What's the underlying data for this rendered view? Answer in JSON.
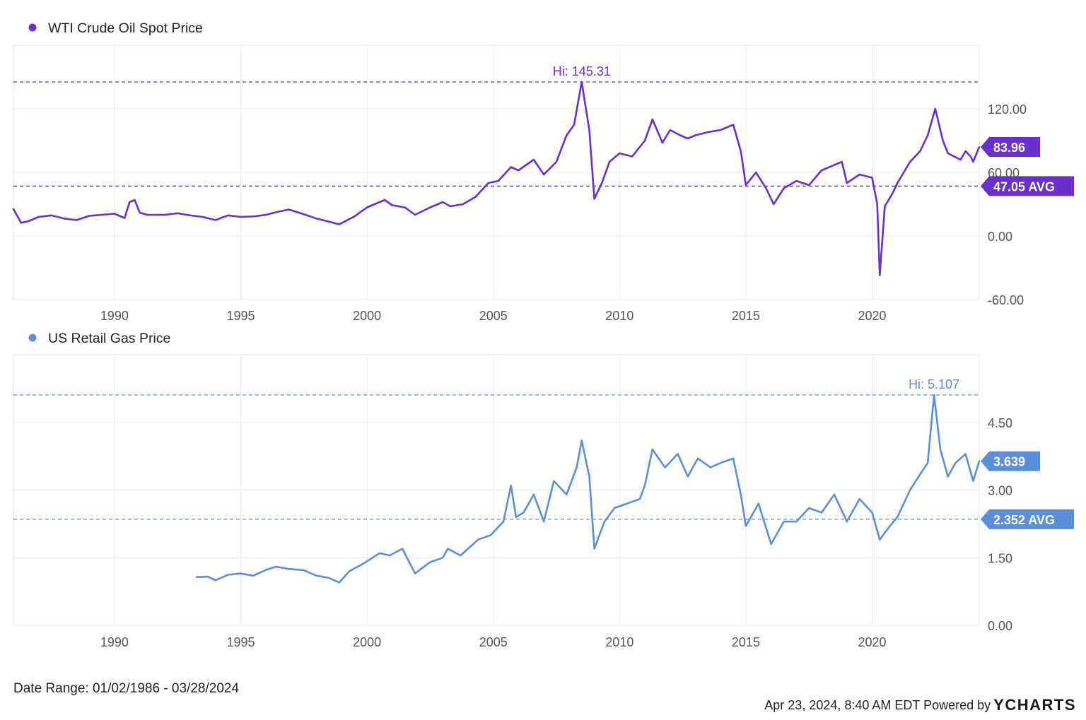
{
  "chart_data": [
    {
      "type": "line",
      "legend": "WTI Crude Oil Spot Price",
      "color": "#6a2fcf",
      "y_ticks": [
        "120.00",
        "60.00",
        "0.00",
        "-60.00"
      ],
      "y_tick_values": [
        120,
        60,
        0,
        -60
      ],
      "ylim": [
        -60,
        180
      ],
      "x_ticks": [
        "1990",
        "1995",
        "2000",
        "2005",
        "2010",
        "2015",
        "2020"
      ],
      "xlim": [
        1986.0,
        2024.24
      ],
      "hi_label": "Hi: 145.31",
      "hi_value": 145.31,
      "last_label": "83.96",
      "last_value": 83.96,
      "avg_label": "47.05 AVG",
      "avg_value": 47.05,
      "grid": true,
      "series": [
        {
          "x": [
            1986.0,
            1986.3,
            1986.6,
            1987.0,
            1987.5,
            1988.0,
            1988.5,
            1989.0,
            1989.5,
            1990.0,
            1990.4,
            1990.6,
            1990.8,
            1991.0,
            1991.3,
            1992.0,
            1992.5,
            1993.0,
            1993.5,
            1994.0,
            1994.5,
            1995.0,
            1995.5,
            1996.0,
            1996.5,
            1996.9,
            1997.5,
            1998.0,
            1998.5,
            1998.9,
            1999.5,
            2000.0,
            2000.7,
            2001.0,
            2001.5,
            2001.9,
            2002.5,
            2003.0,
            2003.3,
            2003.8,
            2004.3,
            2004.8,
            2005.2,
            2005.7,
            2006.0,
            2006.6,
            2007.0,
            2007.5,
            2007.9,
            2008.2,
            2008.5,
            2008.8,
            2009.0,
            2009.3,
            2009.6,
            2010.0,
            2010.5,
            2011.0,
            2011.3,
            2011.7,
            2012.0,
            2012.4,
            2012.7,
            2013.0,
            2013.5,
            2014.0,
            2014.5,
            2014.8,
            2015.0,
            2015.4,
            2015.8,
            2016.1,
            2016.5,
            2017.0,
            2017.5,
            2018.0,
            2018.8,
            2019.0,
            2019.5,
            2020.0,
            2020.2,
            2020.3,
            2020.5,
            2020.8,
            2021.0,
            2021.5,
            2021.9,
            2022.2,
            2022.5,
            2022.8,
            2023.0,
            2023.5,
            2023.7,
            2023.9,
            2024.0,
            2024.24
          ],
          "y": [
            25.5,
            12.5,
            14.0,
            18.0,
            19.5,
            16.5,
            15.0,
            19.0,
            20.0,
            21.0,
            17.0,
            32.0,
            34.0,
            22.0,
            20.0,
            20.0,
            21.5,
            19.5,
            18.0,
            15.0,
            19.5,
            18.0,
            18.5,
            20.0,
            23.0,
            25.0,
            20.5,
            16.5,
            13.5,
            11.0,
            18.5,
            27.0,
            34.0,
            29.0,
            27.0,
            20.0,
            27.0,
            32.0,
            28.0,
            30.0,
            37.0,
            50.0,
            52.0,
            65.0,
            62.0,
            72.0,
            58.0,
            70.0,
            95.0,
            105.0,
            145.31,
            100.0,
            35.0,
            50.0,
            70.0,
            78.0,
            75.0,
            90.0,
            110.0,
            88.0,
            100.0,
            95.0,
            92.0,
            95.0,
            98.0,
            100.0,
            105.0,
            80.0,
            48.0,
            60.0,
            45.0,
            30.0,
            45.0,
            52.0,
            48.0,
            62.0,
            70.0,
            50.0,
            58.0,
            55.0,
            30.0,
            -37.0,
            28.0,
            40.0,
            50.0,
            70.0,
            80.0,
            95.0,
            120.0,
            90.0,
            78.0,
            72.0,
            80.0,
            75.0,
            70.0,
            83.96
          ]
        }
      ]
    },
    {
      "type": "line",
      "legend": "US Retail Gas Price",
      "color": "#5b8fd9",
      "y_ticks": [
        "4.50",
        "3.00",
        "1.50",
        "0.00"
      ],
      "y_tick_values": [
        4.5,
        3.0,
        1.5,
        0.0
      ],
      "ylim": [
        0,
        6.0
      ],
      "x_ticks": [
        "1990",
        "1995",
        "2000",
        "2005",
        "2010",
        "2015",
        "2020"
      ],
      "xlim": [
        1986.0,
        2024.24
      ],
      "hi_label": "Hi: 5.107",
      "hi_value": 5.107,
      "last_label": "3.639",
      "last_value": 3.639,
      "avg_label": "2.352 AVG",
      "avg_value": 2.352,
      "grid": true,
      "series": [
        {
          "x": [
            1993.25,
            1993.7,
            1994.0,
            1994.5,
            1995.0,
            1995.5,
            1996.0,
            1996.4,
            1996.9,
            1997.5,
            1998.0,
            1998.5,
            1998.9,
            1999.3,
            1999.8,
            2000.5,
            2000.9,
            2001.4,
            2001.9,
            2002.5,
            2003.0,
            2003.2,
            2003.7,
            2004.4,
            2004.9,
            2005.4,
            2005.7,
            2005.9,
            2006.2,
            2006.6,
            2007.0,
            2007.4,
            2007.9,
            2008.3,
            2008.5,
            2008.8,
            2009.0,
            2009.4,
            2009.8,
            2010.3,
            2010.8,
            2011.0,
            2011.3,
            2011.8,
            2012.3,
            2012.7,
            2013.1,
            2013.6,
            2014.0,
            2014.5,
            2014.8,
            2015.0,
            2015.5,
            2016.0,
            2016.5,
            2017.0,
            2017.5,
            2018.0,
            2018.5,
            2019.0,
            2019.5,
            2020.0,
            2020.3,
            2020.7,
            2021.0,
            2021.5,
            2021.9,
            2022.2,
            2022.45,
            2022.7,
            2023.0,
            2023.3,
            2023.7,
            2024.0,
            2024.24
          ],
          "y": [
            1.07,
            1.08,
            1.0,
            1.12,
            1.15,
            1.1,
            1.23,
            1.3,
            1.25,
            1.22,
            1.1,
            1.05,
            0.95,
            1.2,
            1.35,
            1.6,
            1.55,
            1.7,
            1.15,
            1.4,
            1.5,
            1.7,
            1.55,
            1.9,
            2.0,
            2.3,
            3.1,
            2.4,
            2.5,
            2.9,
            2.3,
            3.2,
            2.9,
            3.5,
            4.1,
            3.3,
            1.7,
            2.3,
            2.6,
            2.7,
            2.8,
            3.1,
            3.9,
            3.5,
            3.8,
            3.3,
            3.7,
            3.5,
            3.6,
            3.7,
            2.9,
            2.2,
            2.7,
            1.8,
            2.3,
            2.3,
            2.6,
            2.5,
            2.9,
            2.3,
            2.8,
            2.5,
            1.9,
            2.2,
            2.4,
            3.0,
            3.35,
            3.6,
            5.107,
            3.9,
            3.3,
            3.6,
            3.8,
            3.2,
            3.639
          ]
        }
      ]
    }
  ],
  "footer": {
    "date_range": "Date Range: 01/02/1986 - 03/28/2024",
    "timestamp": "Apr 23, 2024, 8:40 AM EDT Powered by",
    "logo_y": "Y",
    "logo_rest": "CHARTS"
  }
}
